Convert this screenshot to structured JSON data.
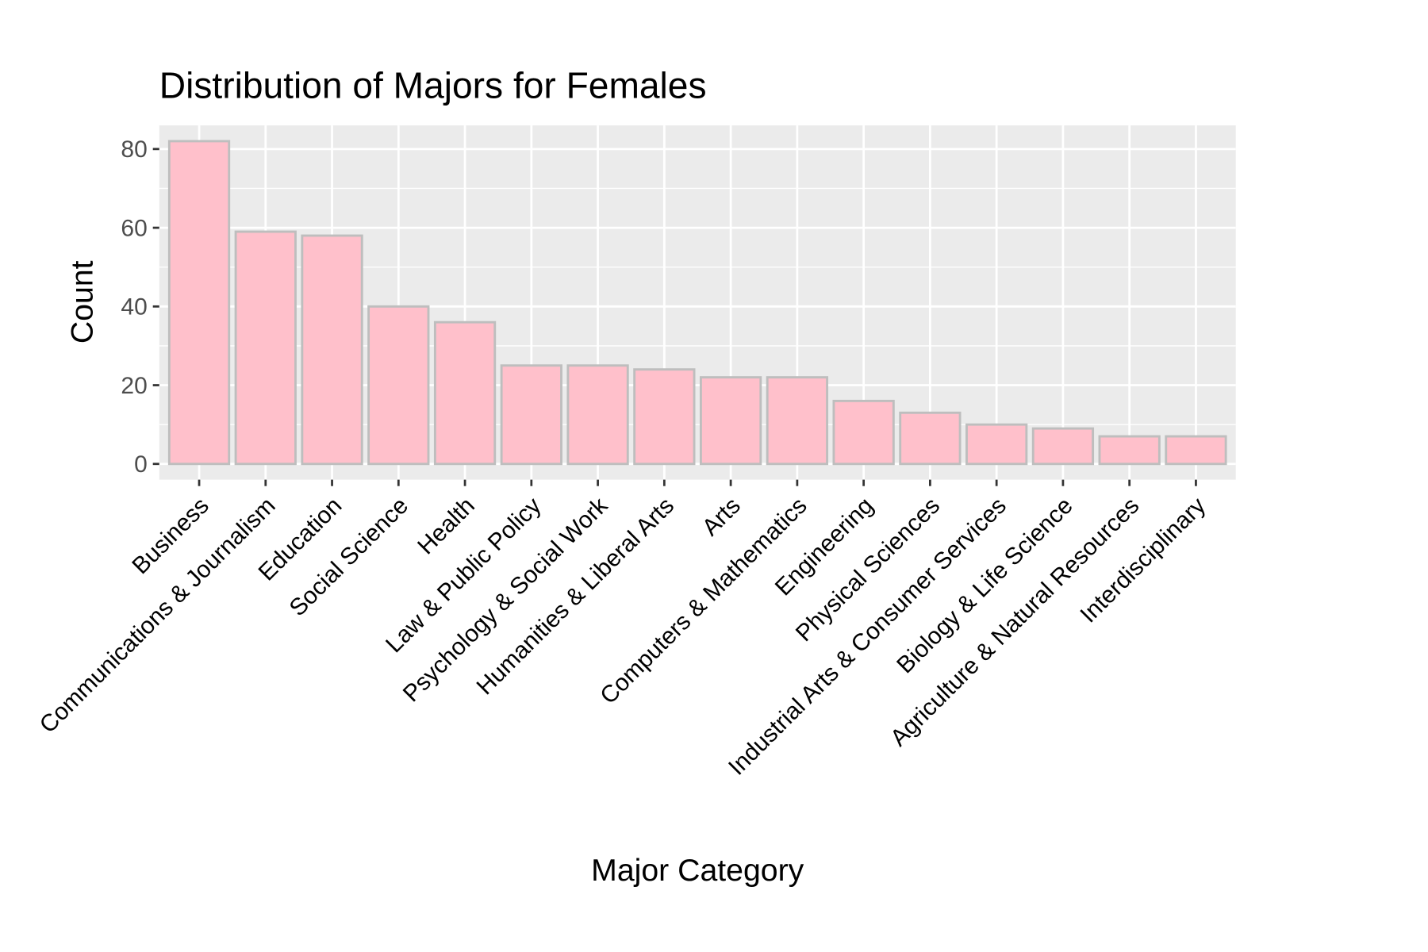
{
  "chart_data": {
    "type": "bar",
    "title": "Distribution of Majors for Females",
    "xlabel": "Major Category",
    "ylabel": "Count",
    "categories": [
      "Business",
      "Communications & Journalism",
      "Education",
      "Social Science",
      "Health",
      "Law & Public Policy",
      "Psychology & Social Work",
      "Humanities & Liberal Arts",
      "Arts",
      "Computers & Mathematics",
      "Engineering",
      "Physical Sciences",
      "Industrial Arts & Consumer Services",
      "Biology & Life Science",
      "Agriculture & Natural Resources",
      "Interdisciplinary"
    ],
    "values": [
      82,
      59,
      58,
      40,
      36,
      25,
      25,
      24,
      22,
      22,
      16,
      13,
      10,
      9,
      7,
      7
    ],
    "yticks": [
      0,
      20,
      40,
      60,
      80
    ],
    "ylim": [
      -4,
      86
    ],
    "grid": true,
    "bar_fill": "#FFC0CB",
    "bar_outline": "#BEBEBE",
    "panel_background": "#EBEBEB"
  }
}
